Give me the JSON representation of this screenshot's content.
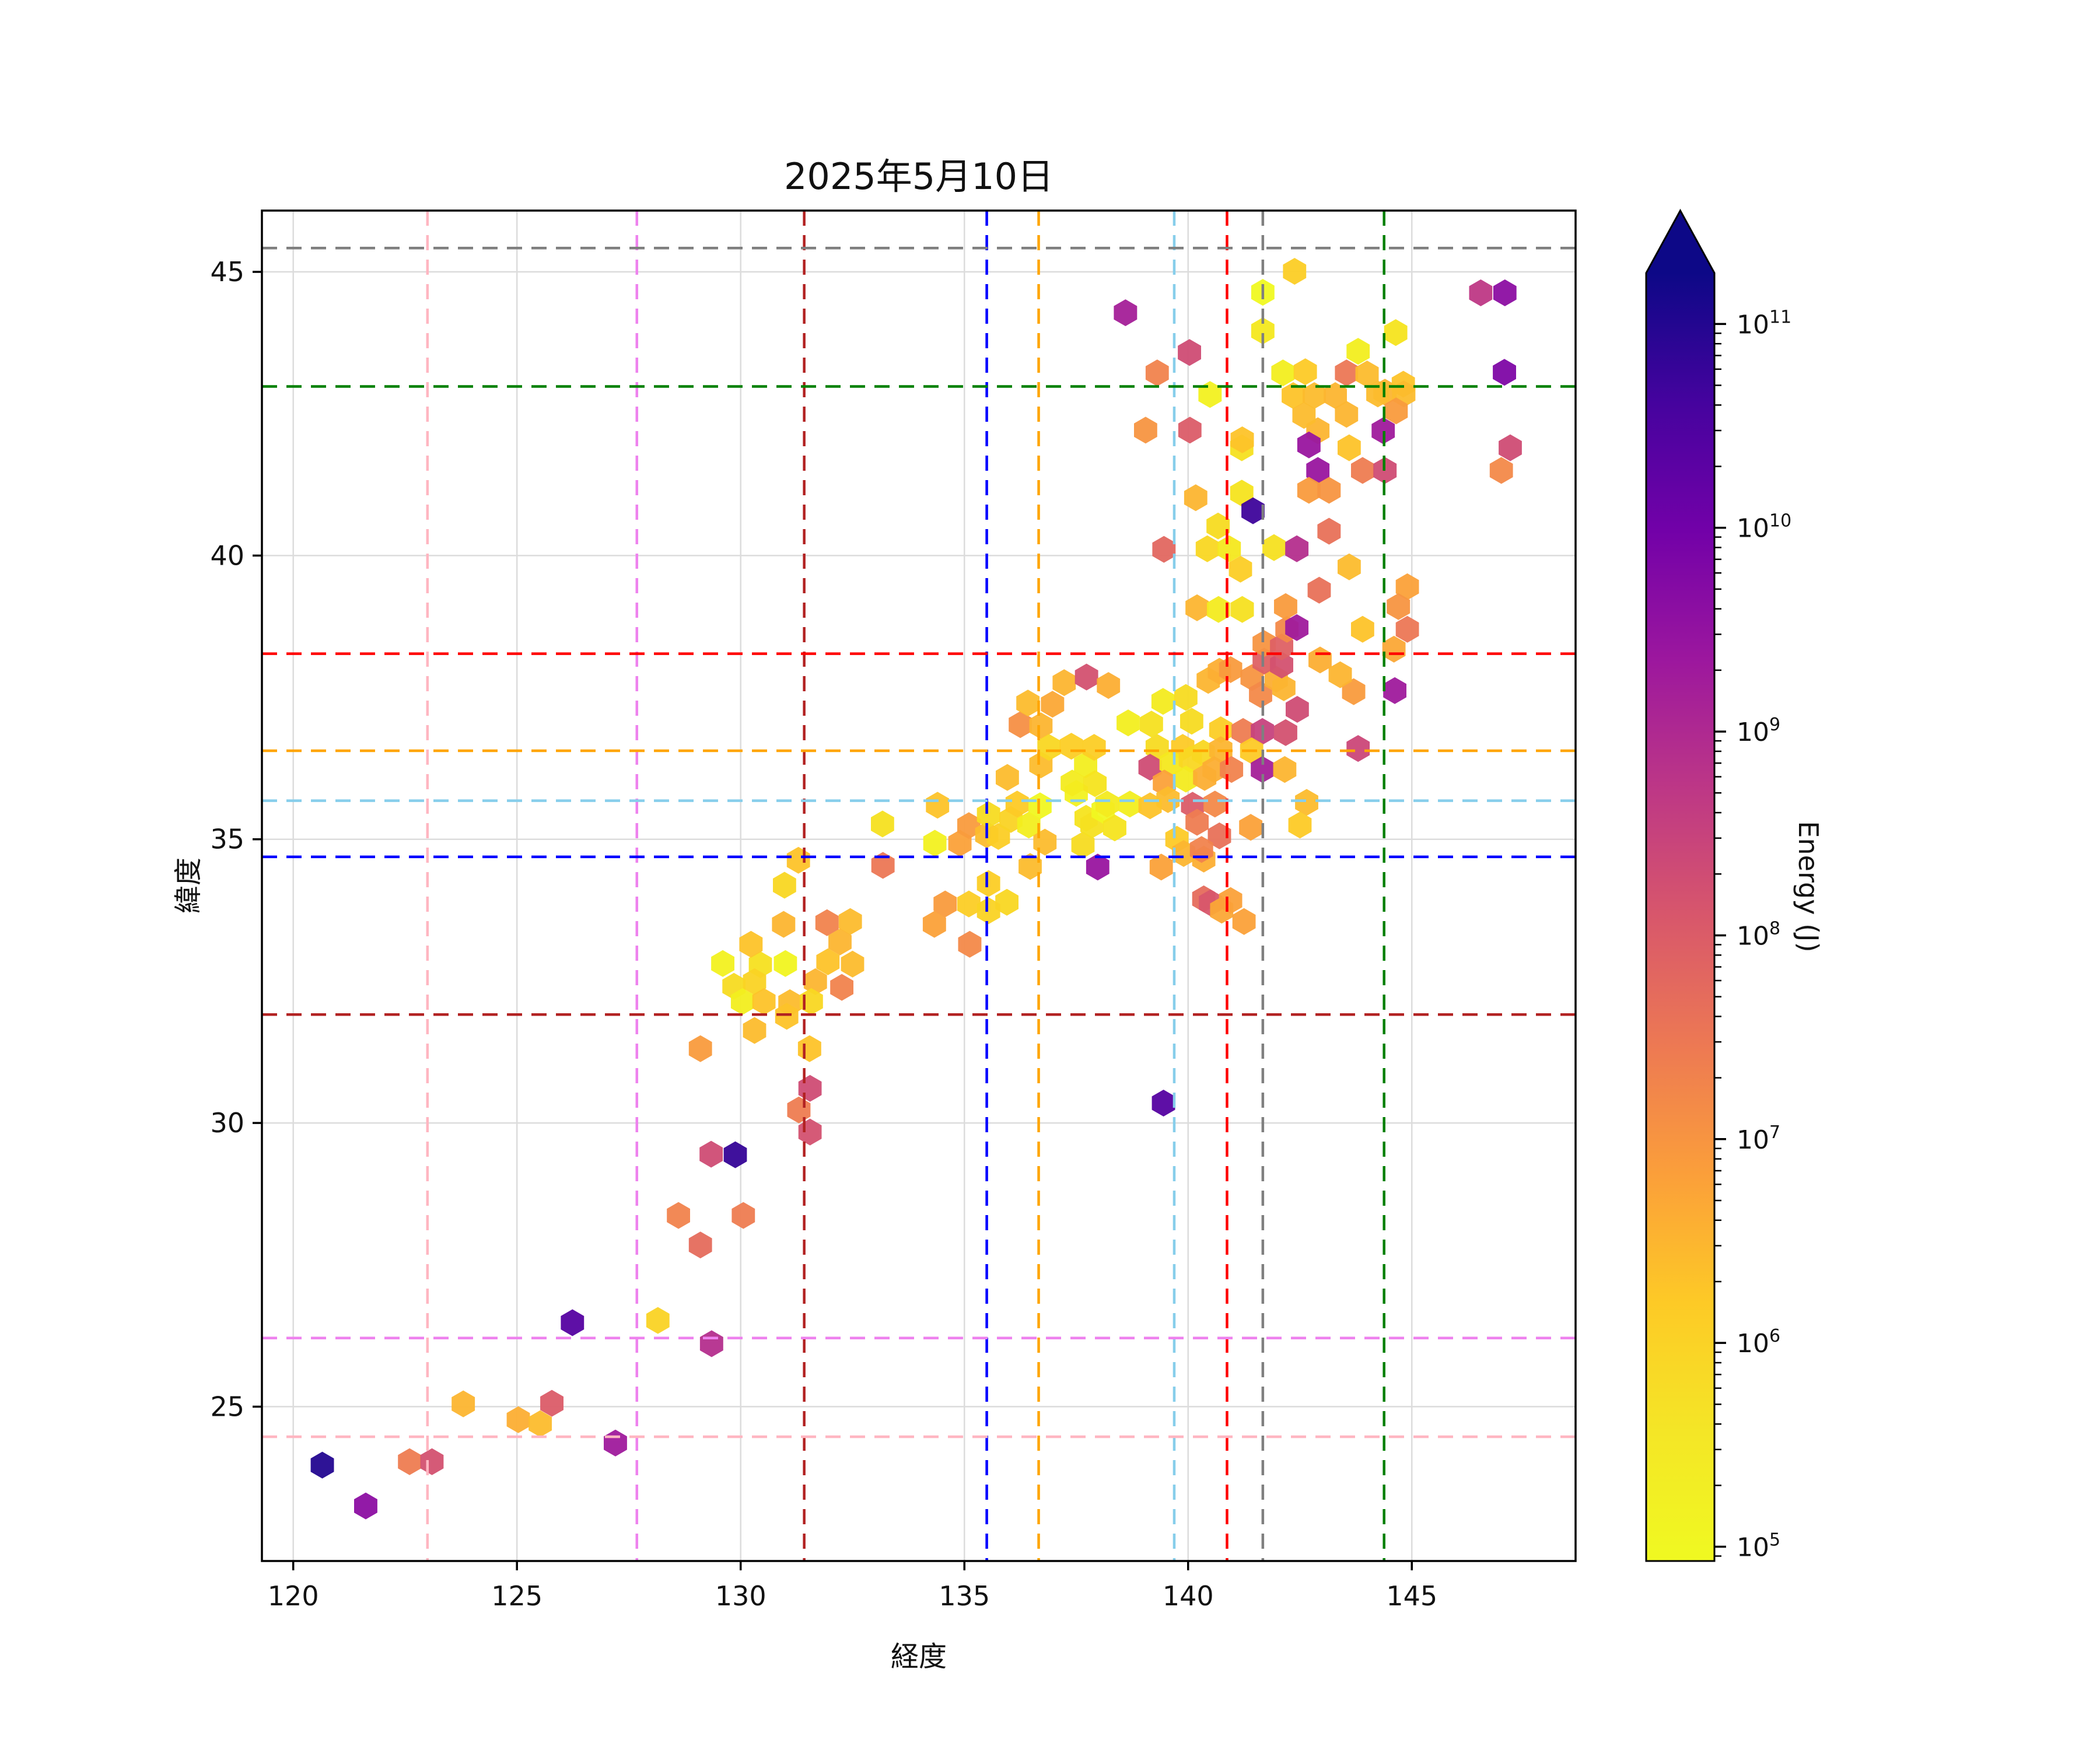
{
  "title": "2025年5月10日",
  "axes": {
    "xlabel": "経度",
    "ylabel": "緯度",
    "xlim": [
      119.3,
      148.66
    ],
    "ylim": [
      22.28,
      46.08
    ],
    "xticks": [
      120,
      125,
      130,
      135,
      140,
      145
    ],
    "yticks": [
      25,
      30,
      35,
      40,
      45
    ],
    "grid": true,
    "grid_color": "#dcdcdc",
    "spine_color": "#000000"
  },
  "reference_lines": {
    "vertical": [
      {
        "lon": 123.0,
        "color": "#FFB6C1"
      },
      {
        "lon": 127.68,
        "color": "#EE82EE"
      },
      {
        "lon": 131.42,
        "color": "#B22222"
      },
      {
        "lon": 135.5,
        "color": "#0000FF"
      },
      {
        "lon": 136.66,
        "color": "#FFA500"
      },
      {
        "lon": 139.69,
        "color": "#87CEEB"
      },
      {
        "lon": 140.87,
        "color": "#FF0000"
      },
      {
        "lon": 141.67,
        "color": "#7F7F7F"
      },
      {
        "lon": 144.38,
        "color": "#008000"
      }
    ],
    "horizontal": [
      {
        "lat": 24.47,
        "color": "#FFB6C1"
      },
      {
        "lat": 26.21,
        "color": "#EE82EE"
      },
      {
        "lat": 31.91,
        "color": "#B22222"
      },
      {
        "lat": 34.69,
        "color": "#0000FF"
      },
      {
        "lat": 35.68,
        "color": "#87CEEB"
      },
      {
        "lat": 36.56,
        "color": "#FFA500"
      },
      {
        "lat": 38.27,
        "color": "#FF0000"
      },
      {
        "lat": 42.98,
        "color": "#008000"
      },
      {
        "lat": 45.42,
        "color": "#7F7F7F"
      }
    ]
  },
  "colorbar": {
    "label": "Energy (J)",
    "tick_exponents": [
      11,
      10,
      9,
      8,
      7,
      6,
      5
    ],
    "log_min": 4.93,
    "log_max": 11.25,
    "extend": "max",
    "colormap": "plasma_r",
    "gradient_top_to_bottom": [
      "#0d0887",
      "#45039e",
      "#7201a8",
      "#9c179e",
      "#bd3786",
      "#d8576b",
      "#ed7953",
      "#fb9f3a",
      "#fdca26",
      "#f4e626",
      "#f0f921"
    ]
  },
  "chart_data": {
    "type": "scatter",
    "marker": "hexagon",
    "title": "2025年5月10日",
    "xlabel": "経度",
    "ylabel": "緯度",
    "value_label": "Energy (J)",
    "value_scale": "log10",
    "points_format": [
      "longitude",
      "latitude",
      "log10_energy_J"
    ],
    "points": [
      [
        120.65,
        23.97,
        11.0
      ],
      [
        121.62,
        23.25,
        9.6
      ],
      [
        122.6,
        24.03,
        7.4
      ],
      [
        123.1,
        24.03,
        8.2
      ],
      [
        123.8,
        25.05,
        6.5
      ],
      [
        125.03,
        24.77,
        6.6
      ],
      [
        125.52,
        24.7,
        6.4
      ],
      [
        125.78,
        25.06,
        8.0
      ],
      [
        126.24,
        26.48,
        10.4
      ],
      [
        127.2,
        24.36,
        9.3
      ],
      [
        128.15,
        26.52,
        6.0
      ],
      [
        129.35,
        26.11,
        8.9
      ],
      [
        129.1,
        27.85,
        7.7
      ],
      [
        128.61,
        28.37,
        7.3
      ],
      [
        130.06,
        28.37,
        7.4
      ],
      [
        129.34,
        29.45,
        8.3
      ],
      [
        129.88,
        29.44,
        10.8
      ],
      [
        131.3,
        30.23,
        7.4
      ],
      [
        131.55,
        30.61,
        8.3
      ],
      [
        131.55,
        29.84,
        8.2
      ],
      [
        129.1,
        31.31,
        6.9
      ],
      [
        130.31,
        31.63,
        6.4
      ],
      [
        131.54,
        31.31,
        6.3
      ],
      [
        129.6,
        32.81,
        5.2
      ],
      [
        130.44,
        32.79,
        5.7
      ],
      [
        131.0,
        32.81,
        5.1
      ],
      [
        131.95,
        32.84,
        6.3
      ],
      [
        132.5,
        32.8,
        6.4
      ],
      [
        129.85,
        32.41,
        5.8
      ],
      [
        130.31,
        32.49,
        6.0
      ],
      [
        131.67,
        32.49,
        6.5
      ],
      [
        132.26,
        32.39,
        7.3
      ],
      [
        130.04,
        32.14,
        5.3
      ],
      [
        130.52,
        32.14,
        6.3
      ],
      [
        131.1,
        32.12,
        6.4
      ],
      [
        131.58,
        32.14,
        5.9
      ],
      [
        131.03,
        31.88,
        6.3
      ],
      [
        130.23,
        33.15,
        6.3
      ],
      [
        130.96,
        33.5,
        6.5
      ],
      [
        130.98,
        34.19,
        5.9
      ],
      [
        131.29,
        34.63,
        6.3
      ],
      [
        131.93,
        33.53,
        7.3
      ],
      [
        132.45,
        33.55,
        6.4
      ],
      [
        132.22,
        33.19,
        6.5
      ],
      [
        133.18,
        34.54,
        7.5
      ],
      [
        133.17,
        35.27,
        5.7
      ],
      [
        134.33,
        33.5,
        6.8
      ],
      [
        135.12,
        33.15,
        7.2
      ],
      [
        134.57,
        33.86,
        6.9
      ],
      [
        135.1,
        33.86,
        6.1
      ],
      [
        134.34,
        34.93,
        5.2
      ],
      [
        134.9,
        34.93,
        6.8
      ],
      [
        135.1,
        35.24,
        6.9
      ],
      [
        135.5,
        35.08,
        6.4
      ],
      [
        134.4,
        35.6,
        6.3
      ],
      [
        135.54,
        34.22,
        6.1
      ],
      [
        135.95,
        33.89,
        5.9
      ],
      [
        135.54,
        33.74,
        6.0
      ],
      [
        135.76,
        35.05,
        6.1
      ],
      [
        135.54,
        35.43,
        5.8
      ],
      [
        135.96,
        36.09,
        6.4
      ],
      [
        136.04,
        35.35,
        6.0
      ],
      [
        136.18,
        35.62,
        6.2
      ],
      [
        136.44,
        35.25,
        5.3
      ],
      [
        136.47,
        34.52,
        6.4
      ],
      [
        136.69,
        35.59,
        5.0
      ],
      [
        136.8,
        34.95,
        6.4
      ],
      [
        137.5,
        35.81,
        5.2
      ],
      [
        137.65,
        34.9,
        5.8
      ],
      [
        137.71,
        36.31,
        5.3
      ],
      [
        137.41,
        35.99,
        5.4
      ],
      [
        137.92,
        35.98,
        5.6
      ],
      [
        137.72,
        35.37,
        5.6
      ],
      [
        137.85,
        35.25,
        5.7
      ],
      [
        138.1,
        35.51,
        5.0
      ],
      [
        138.36,
        35.2,
        5.6
      ],
      [
        138.7,
        35.62,
        5.3
      ],
      [
        138.19,
        35.62,
        5.4
      ],
      [
        137.98,
        34.51,
        9.4
      ],
      [
        136.25,
        37.02,
        7.1
      ],
      [
        136.42,
        37.4,
        6.4
      ],
      [
        136.71,
        37.0,
        6.5
      ],
      [
        136.71,
        36.31,
        6.4
      ],
      [
        136.89,
        36.62,
        5.9
      ],
      [
        137.23,
        37.76,
        6.5
      ],
      [
        137.39,
        36.64,
        6.1
      ],
      [
        137.73,
        37.86,
        8.2
      ],
      [
        137.9,
        36.62,
        6.1
      ],
      [
        138.22,
        37.71,
        6.6
      ],
      [
        136.97,
        37.38,
        6.7
      ],
      [
        138.66,
        37.05,
        5.3
      ],
      [
        139.18,
        37.03,
        5.7
      ],
      [
        139.44,
        37.43,
        5.4
      ],
      [
        139.95,
        37.5,
        5.8
      ],
      [
        140.08,
        37.08,
        5.8
      ],
      [
        139.31,
        36.62,
        5.8
      ],
      [
        139.88,
        36.62,
        6.2
      ],
      [
        140.34,
        36.52,
        5.9
      ],
      [
        139.15,
        36.27,
        8.3
      ],
      [
        139.62,
        36.34,
        5.5
      ],
      [
        140.05,
        36.41,
        5.9
      ],
      [
        139.47,
        35.99,
        6.8
      ],
      [
        139.95,
        36.06,
        5.4
      ],
      [
        140.37,
        36.09,
        6.6
      ],
      [
        140.73,
        36.93,
        6.1
      ],
      [
        141.23,
        36.9,
        7.4
      ],
      [
        141.66,
        36.9,
        8.5
      ],
      [
        142.18,
        36.88,
        8.2
      ],
      [
        140.73,
        36.58,
        6.5
      ],
      [
        141.42,
        36.56,
        6.2
      ],
      [
        140.58,
        36.23,
        6.6
      ],
      [
        140.97,
        36.23,
        7.3
      ],
      [
        141.66,
        36.23,
        9.2
      ],
      [
        142.16,
        36.23,
        6.5
      ],
      [
        143.8,
        36.6,
        8.4
      ],
      [
        139.55,
        35.7,
        6.4
      ],
      [
        139.15,
        35.59,
        6.3
      ],
      [
        140.1,
        35.6,
        8.0
      ],
      [
        140.6,
        35.62,
        7.2
      ],
      [
        140.2,
        35.3,
        7.4
      ],
      [
        140.7,
        35.06,
        7.6
      ],
      [
        139.75,
        35.0,
        6.2
      ],
      [
        140.35,
        34.65,
        6.6
      ],
      [
        139.9,
        34.75,
        6.5
      ],
      [
        139.4,
        34.51,
        6.8
      ],
      [
        140.3,
        34.82,
        7.3
      ],
      [
        141.4,
        35.21,
        6.8
      ],
      [
        142.65,
        35.65,
        6.4
      ],
      [
        142.5,
        35.25,
        6.2
      ],
      [
        140.35,
        33.95,
        7.7
      ],
      [
        140.5,
        33.88,
        8.1
      ],
      [
        140.75,
        33.75,
        6.7
      ],
      [
        140.95,
        33.92,
        6.8
      ],
      [
        141.25,
        33.55,
        6.8
      ],
      [
        139.45,
        30.35,
        10.4
      ],
      [
        140.45,
        37.8,
        6.5
      ],
      [
        140.7,
        37.96,
        6.6
      ],
      [
        140.95,
        37.99,
        6.9
      ],
      [
        141.43,
        37.85,
        7.0
      ],
      [
        141.62,
        37.55,
        7.2
      ],
      [
        141.97,
        37.82,
        6.6
      ],
      [
        142.14,
        37.67,
        6.5
      ],
      [
        142.44,
        37.29,
        8.3
      ],
      [
        143.7,
        37.6,
        6.9
      ],
      [
        144.62,
        37.62,
        9.3
      ],
      [
        143.4,
        37.9,
        6.5
      ],
      [
        141.7,
        38.14,
        7.9
      ],
      [
        142.09,
        38.07,
        8.2
      ],
      [
        142.95,
        38.16,
        6.6
      ],
      [
        141.7,
        38.45,
        7.0
      ],
      [
        142.09,
        38.39,
        7.9
      ],
      [
        142.21,
        38.7,
        7.2
      ],
      [
        142.43,
        38.73,
        9.3
      ],
      [
        143.9,
        38.7,
        6.3
      ],
      [
        144.9,
        38.7,
        7.5
      ],
      [
        144.6,
        38.35,
        6.7
      ],
      [
        140.2,
        39.08,
        6.5
      ],
      [
        140.68,
        39.05,
        5.4
      ],
      [
        141.21,
        39.05,
        5.7
      ],
      [
        142.18,
        39.1,
        6.9
      ],
      [
        142.93,
        39.39,
        7.6
      ],
      [
        143.6,
        39.8,
        6.4
      ],
      [
        144.9,
        39.45,
        6.8
      ],
      [
        144.7,
        39.1,
        7.0
      ],
      [
        141.17,
        39.76,
        6.1
      ],
      [
        139.46,
        40.11,
        7.8
      ],
      [
        140.43,
        40.12,
        5.9
      ],
      [
        140.92,
        40.12,
        5.5
      ],
      [
        141.92,
        40.14,
        5.7
      ],
      [
        142.43,
        40.12,
        8.9
      ],
      [
        140.67,
        40.52,
        5.8
      ],
      [
        143.15,
        40.43,
        7.6
      ],
      [
        140.17,
        41.02,
        6.5
      ],
      [
        141.2,
        41.1,
        5.6
      ],
      [
        141.45,
        40.79,
        10.7
      ],
      [
        141.2,
        41.9,
        5.7
      ],
      [
        142.9,
        42.2,
        6.5
      ],
      [
        142.7,
        41.95,
        9.4
      ],
      [
        142.9,
        41.5,
        9.4
      ],
      [
        142.7,
        41.15,
        6.9
      ],
      [
        143.15,
        41.15,
        7.0
      ],
      [
        143.6,
        41.9,
        6.3
      ],
      [
        143.9,
        41.5,
        7.4
      ],
      [
        144.4,
        41.5,
        8.3
      ],
      [
        144.36,
        42.2,
        9.3
      ],
      [
        139.05,
        42.21,
        7.0
      ],
      [
        140.04,
        42.21,
        8.0
      ],
      [
        141.21,
        42.04,
        6.3
      ],
      [
        140.49,
        42.84,
        5.2
      ],
      [
        139.31,
        43.22,
        7.3
      ],
      [
        140.03,
        43.58,
        8.3
      ],
      [
        142.12,
        43.22,
        5.3
      ],
      [
        142.62,
        43.24,
        6.2
      ],
      [
        143.54,
        43.22,
        7.5
      ],
      [
        142.35,
        42.82,
        6.3
      ],
      [
        142.82,
        42.82,
        6.4
      ],
      [
        143.29,
        42.82,
        6.5
      ],
      [
        142.59,
        42.47,
        6.4
      ],
      [
        143.54,
        42.49,
        6.5
      ],
      [
        143.8,
        43.6,
        5.3
      ],
      [
        144.0,
        43.2,
        6.4
      ],
      [
        144.4,
        42.88,
        6.5
      ],
      [
        144.81,
        43.02,
        6.3
      ],
      [
        144.24,
        42.85,
        6.4
      ],
      [
        144.82,
        42.85,
        6.4
      ],
      [
        144.65,
        42.55,
        6.9
      ],
      [
        144.64,
        43.93,
        5.6
      ],
      [
        138.6,
        44.28,
        9.2
      ],
      [
        141.67,
        44.64,
        4.9
      ],
      [
        141.67,
        43.96,
        5.5
      ],
      [
        142.38,
        45.01,
        6.1
      ],
      [
        146.54,
        44.63,
        8.7
      ],
      [
        147.08,
        44.63,
        9.6
      ],
      [
        147.07,
        43.23,
        9.8
      ],
      [
        147.2,
        41.9,
        8.3
      ],
      [
        147.0,
        41.5,
        7.2
      ]
    ]
  }
}
